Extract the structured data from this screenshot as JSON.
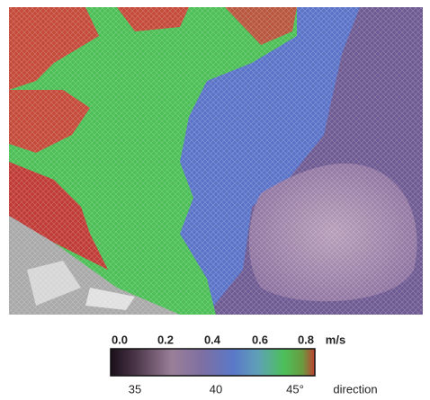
{
  "colorbar": {
    "speed_ticks": [
      "0.0",
      "0.2",
      "0.4",
      "0.6",
      "0.8"
    ],
    "speed_unit": "m/s",
    "direction_ticks": [
      "35",
      "40",
      "45°"
    ],
    "direction_label": "direction"
  }
}
